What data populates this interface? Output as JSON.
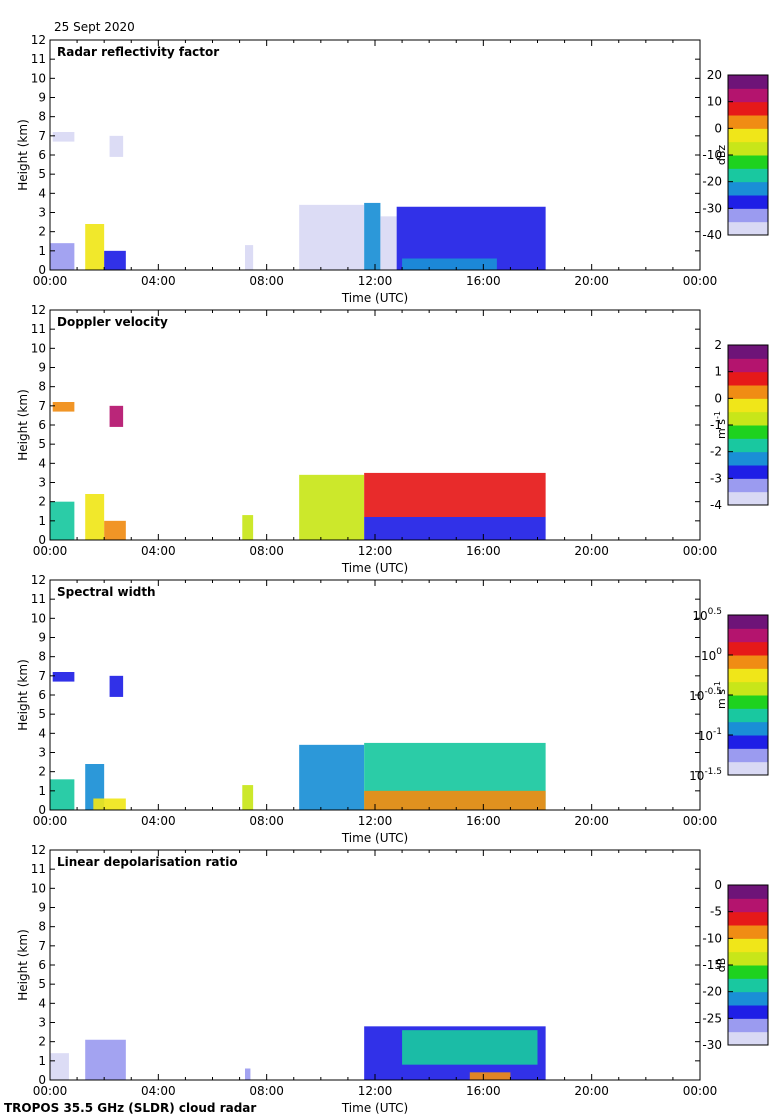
{
  "header": {
    "date": "25 Sept 2020"
  },
  "footer": {
    "instrument": "TROPOS 35.5 GHz (SLDR) cloud radar"
  },
  "colors": {
    "rainbow": [
      "#d9d9f4",
      "#9b9bf0",
      "#1f1fe6",
      "#1a8fd6",
      "#19c8a0",
      "#1ed21e",
      "#c8e619",
      "#f0e619",
      "#f08c14",
      "#e61919",
      "#b4146e",
      "#6e1478"
    ]
  },
  "chart_data": [
    {
      "type": "heatmap",
      "title": "Radar reflectivity factor",
      "xlabel": "Time (UTC)",
      "ylabel": "Height (km)",
      "xlim": [
        0,
        24
      ],
      "ylim": [
        0,
        12
      ],
      "xticks": [
        "00:00",
        "04:00",
        "08:00",
        "12:00",
        "16:00",
        "20:00",
        "00:00"
      ],
      "yticks": [
        "0",
        "1",
        "2",
        "3",
        "4",
        "5",
        "6",
        "7",
        "8",
        "9",
        "10",
        "11",
        "12"
      ],
      "colorbar": {
        "unit": "dBz",
        "min": -40,
        "max": 20,
        "ticks": [
          "-40",
          "-30",
          "-20",
          "-10",
          "0",
          "10",
          "20"
        ]
      },
      "echoes": [
        {
          "t0": 0.0,
          "t1": 0.9,
          "h0": 0.0,
          "h1": 1.4,
          "value": -31
        },
        {
          "t0": 0.1,
          "t1": 0.9,
          "h0": 6.7,
          "h1": 7.2,
          "value": -38
        },
        {
          "t0": 1.3,
          "t1": 2.0,
          "h0": 0.0,
          "h1": 2.4,
          "value": -5
        },
        {
          "t0": 2.0,
          "t1": 2.8,
          "h0": 0.0,
          "h1": 1.0,
          "value": -30
        },
        {
          "t0": 2.2,
          "t1": 2.7,
          "h0": 5.9,
          "h1": 7.0,
          "value": -38
        },
        {
          "t0": 7.2,
          "t1": 7.5,
          "h0": 0.0,
          "h1": 1.3,
          "value": -38
        },
        {
          "t0": 9.2,
          "t1": 11.6,
          "h0": 0.0,
          "h1": 3.4,
          "value": -37
        },
        {
          "t0": 11.6,
          "t1": 12.2,
          "h0": 0.0,
          "h1": 3.5,
          "value": -24
        },
        {
          "t0": 12.2,
          "t1": 12.8,
          "h0": 0.0,
          "h1": 2.8,
          "value": -37
        },
        {
          "t0": 12.8,
          "t1": 18.3,
          "h0": 0.0,
          "h1": 3.3,
          "value": -28
        },
        {
          "t0": 13.0,
          "t1": 16.5,
          "h0": 0.0,
          "h1": 0.6,
          "value": -21
        }
      ]
    },
    {
      "type": "heatmap",
      "title": "Doppler velocity",
      "xlabel": "Time (UTC)",
      "ylabel": "Height (km)",
      "xlim": [
        0,
        24
      ],
      "ylim": [
        0,
        12
      ],
      "xticks": [
        "00:00",
        "04:00",
        "08:00",
        "12:00",
        "16:00",
        "20:00",
        "00:00"
      ],
      "yticks": [
        "0",
        "1",
        "2",
        "3",
        "4",
        "5",
        "6",
        "7",
        "8",
        "9",
        "10",
        "11",
        "12"
      ],
      "colorbar": {
        "unit": "m s",
        "unit_sup": "-1",
        "min": -4,
        "max": 2,
        "ticks": [
          "-4",
          "-3",
          "-2",
          "-1",
          "0",
          "1",
          "2"
        ]
      },
      "echoes": [
        {
          "t0": 0.0,
          "t1": 0.9,
          "h0": 0.0,
          "h1": 2.0,
          "value": -1.7
        },
        {
          "t0": 0.1,
          "t1": 0.9,
          "h0": 6.7,
          "h1": 7.2,
          "value": 0.4
        },
        {
          "t0": 1.3,
          "t1": 2.0,
          "h0": 0.0,
          "h1": 2.4,
          "value": -0.5
        },
        {
          "t0": 2.0,
          "t1": 2.8,
          "h0": 0.0,
          "h1": 1.0,
          "value": 0.1
        },
        {
          "t0": 2.2,
          "t1": 2.7,
          "h0": 5.9,
          "h1": 7.0,
          "value": 1.2
        },
        {
          "t0": 7.1,
          "t1": 7.5,
          "h0": 0.0,
          "h1": 1.3,
          "value": -0.8
        },
        {
          "t0": 9.2,
          "t1": 11.6,
          "h0": 0.0,
          "h1": 3.4,
          "value": -0.9
        },
        {
          "t0": 11.6,
          "t1": 18.3,
          "h0": 1.2,
          "h1": 3.5,
          "value": 0.6
        },
        {
          "t0": 11.6,
          "t1": 18.3,
          "h0": 0.0,
          "h1": 1.2,
          "value": -2.7
        }
      ]
    },
    {
      "type": "heatmap",
      "title": "Spectral width",
      "xlabel": "Time (UTC)",
      "ylabel": "Height (km)",
      "xlim": [
        0,
        24
      ],
      "ylim": [
        0,
        12
      ],
      "xticks": [
        "00:00",
        "04:00",
        "08:00",
        "12:00",
        "16:00",
        "20:00",
        "00:00"
      ],
      "yticks": [
        "0",
        "1",
        "2",
        "3",
        "4",
        "5",
        "6",
        "7",
        "8",
        "9",
        "10",
        "11",
        "12"
      ],
      "colorbar": {
        "unit": "m s",
        "unit_sup": "-1",
        "scale": "log10",
        "min": -1.5,
        "max": 0.5,
        "ticks": [
          "-1.5",
          "-1",
          "-0.5",
          "0",
          "0.5"
        ],
        "tick_base": "10"
      },
      "echoes": [
        {
          "t0": 0.0,
          "t1": 0.9,
          "h0": 0.0,
          "h1": 1.6,
          "value": -0.75
        },
        {
          "t0": 0.1,
          "t1": 0.9,
          "h0": 6.7,
          "h1": 7.2,
          "value": -1.05
        },
        {
          "t0": 1.3,
          "t1": 2.0,
          "h0": 0.0,
          "h1": 2.4,
          "value": -0.85
        },
        {
          "t0": 1.6,
          "t1": 2.8,
          "h0": 0.0,
          "h1": 0.6,
          "value": -0.2
        },
        {
          "t0": 2.2,
          "t1": 2.7,
          "h0": 5.9,
          "h1": 7.0,
          "value": -1.05
        },
        {
          "t0": 7.1,
          "t1": 7.5,
          "h0": 0.0,
          "h1": 1.3,
          "value": -0.35
        },
        {
          "t0": 9.2,
          "t1": 11.6,
          "h0": 0.0,
          "h1": 3.4,
          "value": -1.0
        },
        {
          "t0": 11.6,
          "t1": 18.3,
          "h0": 0.0,
          "h1": 3.5,
          "value": -0.7
        },
        {
          "t0": 11.6,
          "t1": 18.3,
          "h0": 0.0,
          "h1": 1.0,
          "value": -0.15
        }
      ]
    },
    {
      "type": "heatmap",
      "title": "Linear depolarisation ratio",
      "xlabel": "Time (UTC)",
      "ylabel": "Height (km)",
      "xlim": [
        0,
        24
      ],
      "ylim": [
        0,
        12
      ],
      "xticks": [
        "00:00",
        "04:00",
        "08:00",
        "12:00",
        "16:00",
        "20:00",
        "00:00"
      ],
      "yticks": [
        "0",
        "1",
        "2",
        "3",
        "4",
        "5",
        "6",
        "7",
        "8",
        "9",
        "10",
        "11",
        "12"
      ],
      "colorbar": {
        "unit": "dB",
        "min": -30,
        "max": 0,
        "ticks": [
          "-30",
          "-25",
          "-20",
          "-15",
          "-10",
          "-5",
          "0"
        ]
      },
      "echoes": [
        {
          "t0": 0.0,
          "t1": 0.7,
          "h0": 0.0,
          "h1": 1.4,
          "value": -28
        },
        {
          "t0": 1.3,
          "t1": 2.8,
          "h0": 0.0,
          "h1": 2.1,
          "value": -27
        },
        {
          "t0": 7.2,
          "t1": 7.4,
          "h0": 0.0,
          "h1": 0.6,
          "value": -26
        },
        {
          "t0": 11.6,
          "t1": 18.3,
          "h0": 0.0,
          "h1": 2.8,
          "value": -25
        },
        {
          "t0": 13.0,
          "t1": 18.0,
          "h0": 0.8,
          "h1": 2.6,
          "value": -18
        },
        {
          "t0": 15.5,
          "t1": 17.0,
          "h0": 0.0,
          "h1": 0.4,
          "value": -8
        }
      ]
    }
  ]
}
